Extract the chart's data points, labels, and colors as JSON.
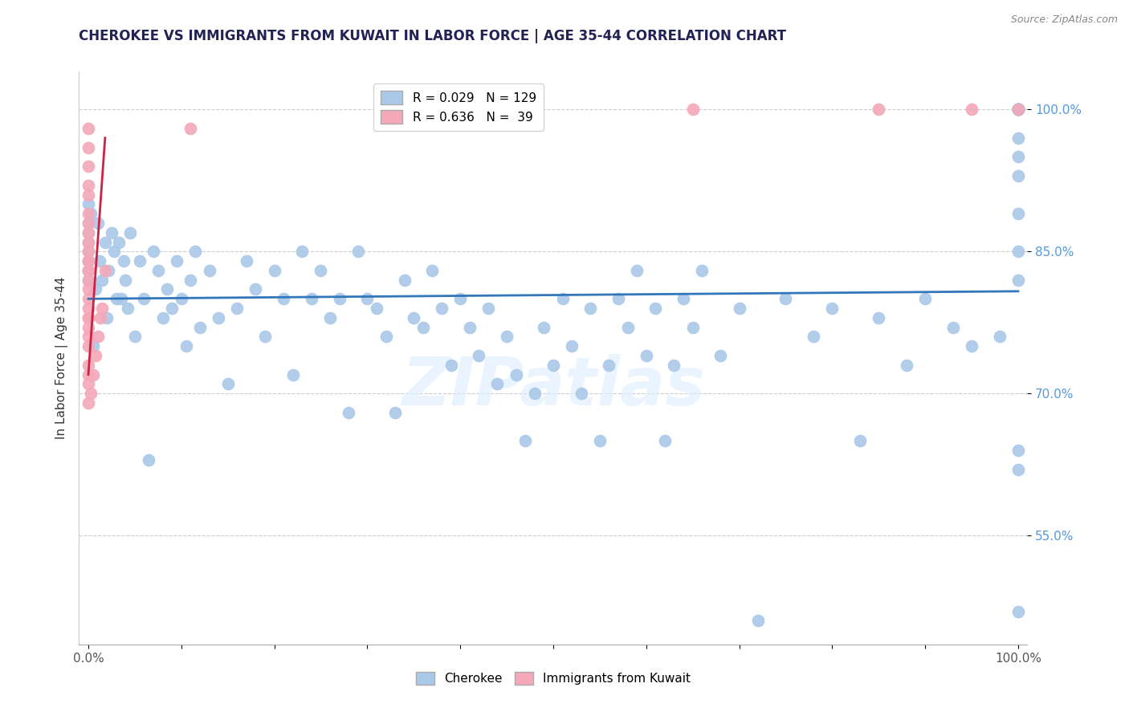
{
  "title": "CHEROKEE VS IMMIGRANTS FROM KUWAIT IN LABOR FORCE | AGE 35-44 CORRELATION CHART",
  "source_text": "Source: ZipAtlas.com",
  "ylabel": "In Labor Force | Age 35-44",
  "xlim": [
    -0.01,
    1.01
  ],
  "ylim": [
    0.435,
    1.04
  ],
  "xtick_positions": [
    0.0,
    0.1,
    0.2,
    0.3,
    0.4,
    0.5,
    0.6,
    0.7,
    0.8,
    0.9,
    1.0
  ],
  "xtick_labels": [
    "0.0%",
    "",
    "",
    "",
    "",
    "",
    "",
    "",
    "",
    "",
    "100.0%"
  ],
  "yticks": [
    0.55,
    0.7,
    0.85,
    1.0
  ],
  "ytick_labels": [
    "55.0%",
    "70.0%",
    "85.0%",
    "100.0%"
  ],
  "legend_r1": "R = 0.029",
  "legend_n1": "N = 129",
  "legend_r2": "R = 0.636",
  "legend_n2": "N =  39",
  "blue_color": "#aac8e8",
  "pink_color": "#f4a8b8",
  "blue_line_color": "#3377bb",
  "pink_line_color": "#cc2244",
  "watermark": "ZIPatlas",
  "blue_scatter_x": [
    0.0,
    0.0,
    0.0,
    0.0,
    0.0,
    0.0,
    0.0,
    0.0,
    0.003,
    0.005,
    0.008,
    0.01,
    0.012,
    0.015,
    0.018,
    0.02,
    0.022,
    0.025,
    0.028,
    0.03,
    0.033,
    0.035,
    0.038,
    0.04,
    0.042,
    0.045,
    0.05,
    0.055,
    0.06,
    0.065,
    0.07,
    0.075,
    0.08,
    0.085,
    0.09,
    0.095,
    0.1,
    0.105,
    0.11,
    0.115,
    0.12,
    0.13,
    0.14,
    0.15,
    0.16,
    0.17,
    0.18,
    0.19,
    0.2,
    0.21,
    0.22,
    0.23,
    0.24,
    0.25,
    0.26,
    0.27,
    0.28,
    0.29,
    0.3,
    0.31,
    0.32,
    0.33,
    0.34,
    0.35,
    0.36,
    0.37,
    0.38,
    0.39,
    0.4,
    0.41,
    0.42,
    0.43,
    0.44,
    0.45,
    0.46,
    0.47,
    0.48,
    0.49,
    0.5,
    0.51,
    0.52,
    0.53,
    0.54,
    0.55,
    0.56,
    0.57,
    0.58,
    0.59,
    0.6,
    0.61,
    0.62,
    0.63,
    0.64,
    0.65,
    0.66,
    0.68,
    0.7,
    0.72,
    0.75,
    0.78,
    0.8,
    0.83,
    0.85,
    0.88,
    0.9,
    0.93,
    0.95,
    0.98,
    1.0,
    1.0,
    1.0,
    1.0,
    1.0,
    1.0,
    1.0,
    1.0,
    1.0,
    1.0,
    1.0,
    1.0,
    1.0,
    1.0,
    1.0,
    1.0,
    1.0,
    1.0,
    1.0,
    1.0,
    1.0
  ],
  "blue_scatter_y": [
    0.87,
    0.9,
    0.85,
    0.83,
    0.88,
    0.86,
    0.84,
    0.82,
    0.89,
    0.75,
    0.81,
    0.88,
    0.84,
    0.82,
    0.86,
    0.78,
    0.83,
    0.87,
    0.85,
    0.8,
    0.86,
    0.8,
    0.84,
    0.82,
    0.79,
    0.87,
    0.76,
    0.84,
    0.8,
    0.63,
    0.85,
    0.83,
    0.78,
    0.81,
    0.79,
    0.84,
    0.8,
    0.75,
    0.82,
    0.85,
    0.77,
    0.83,
    0.78,
    0.71,
    0.79,
    0.84,
    0.81,
    0.76,
    0.83,
    0.8,
    0.72,
    0.85,
    0.8,
    0.83,
    0.78,
    0.8,
    0.68,
    0.85,
    0.8,
    0.79,
    0.76,
    0.68,
    0.82,
    0.78,
    0.77,
    0.83,
    0.79,
    0.73,
    0.8,
    0.77,
    0.74,
    0.79,
    0.71,
    0.76,
    0.72,
    0.65,
    0.7,
    0.77,
    0.73,
    0.8,
    0.75,
    0.7,
    0.79,
    0.65,
    0.73,
    0.8,
    0.77,
    0.83,
    0.74,
    0.79,
    0.65,
    0.73,
    0.8,
    0.77,
    0.83,
    0.74,
    0.79,
    0.46,
    0.8,
    0.76,
    0.79,
    0.65,
    0.78,
    0.73,
    0.8,
    0.77,
    0.75,
    0.76,
    1.0,
    1.0,
    1.0,
    1.0,
    1.0,
    1.0,
    1.0,
    1.0,
    0.97,
    0.95,
    0.93,
    0.89,
    0.85,
    0.82,
    1.0,
    1.0,
    1.0,
    1.0,
    0.62,
    0.47,
    0.64
  ],
  "pink_scatter_x": [
    0.0,
    0.0,
    0.0,
    0.0,
    0.0,
    0.0,
    0.0,
    0.0,
    0.0,
    0.0,
    0.0,
    0.0,
    0.0,
    0.0,
    0.0,
    0.0,
    0.0,
    0.0,
    0.0,
    0.0,
    0.0,
    0.0,
    0.0,
    0.0,
    0.0,
    0.0,
    0.0,
    0.003,
    0.005,
    0.008,
    0.01,
    0.013,
    0.015,
    0.018,
    1.0,
    0.11,
    0.65,
    0.85,
    0.95
  ],
  "pink_scatter_y": [
    0.98,
    0.96,
    0.94,
    0.92,
    0.91,
    0.89,
    0.88,
    0.87,
    0.86,
    0.85,
    0.84,
    0.83,
    0.82,
    0.81,
    0.79,
    0.78,
    0.77,
    0.76,
    0.75,
    0.73,
    0.72,
    0.71,
    0.69,
    0.8,
    0.78,
    0.84,
    0.83,
    0.7,
    0.72,
    0.74,
    0.76,
    0.78,
    0.79,
    0.83,
    1.0,
    0.98,
    1.0,
    1.0,
    1.0
  ],
  "blue_trend_x": [
    0.0,
    1.0
  ],
  "blue_trend_y": [
    0.8,
    0.808
  ],
  "pink_trend_x": [
    0.0,
    0.018
  ],
  "pink_trend_y": [
    0.72,
    0.97
  ]
}
